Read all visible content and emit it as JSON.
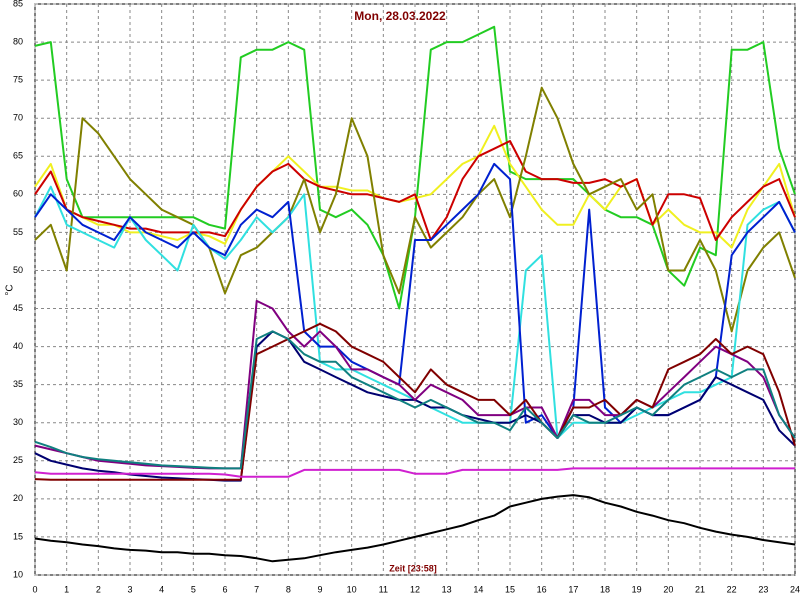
{
  "chart_data": {
    "type": "line",
    "title": "Mon, 28.03.2022",
    "xlabel": "Zeit [23:58]",
    "ylabel": "°C",
    "x": [
      0,
      0.5,
      1,
      1.5,
      2,
      2.5,
      3,
      3.5,
      4,
      4.5,
      5,
      5.5,
      6,
      6.5,
      7,
      7.5,
      8,
      8.5,
      9,
      9.5,
      10,
      10.5,
      11,
      11.5,
      12,
      12.5,
      13,
      13.5,
      14,
      14.5,
      15,
      15.5,
      16,
      16.5,
      17,
      17.5,
      18,
      18.5,
      19,
      19.5,
      20,
      20.5,
      21,
      21.5,
      22,
      22.5,
      23,
      23.5,
      24
    ],
    "xlim": [
      0,
      24
    ],
    "xticks": [
      0,
      1,
      2,
      3,
      4,
      5,
      6,
      7,
      8,
      9,
      10,
      11,
      12,
      13,
      14,
      15,
      16,
      17,
      18,
      19,
      20,
      21,
      22,
      23,
      24
    ],
    "ylim": [
      10,
      85
    ],
    "yticks": [
      10,
      15,
      20,
      25,
      30,
      35,
      40,
      45,
      50,
      55,
      60,
      65,
      70,
      75,
      80,
      85
    ],
    "grid": true,
    "series": [
      {
        "color": "#22cc22",
        "values": [
          79.5,
          80,
          62,
          57,
          57,
          57,
          57,
          57,
          57,
          57,
          57,
          56,
          55.5,
          78,
          79,
          79,
          80,
          79,
          58,
          57,
          58,
          56,
          52,
          45,
          57,
          79,
          80,
          80,
          81,
          82,
          63,
          62,
          62,
          62,
          62,
          60,
          58,
          57,
          57,
          56,
          50,
          48,
          53,
          52,
          79,
          79,
          80,
          66,
          60
        ]
      },
      {
        "color": "#f0f020",
        "values": [
          61,
          64,
          58,
          57,
          56,
          56,
          55,
          55,
          54.5,
          54,
          55,
          54.5,
          53.5,
          58,
          61,
          63,
          65,
          63,
          61,
          61,
          60.5,
          60.5,
          59.5,
          59,
          59.5,
          60,
          62,
          64,
          65,
          69,
          64,
          61,
          58,
          56,
          56,
          60,
          58,
          61,
          62,
          56,
          58,
          56,
          55,
          55,
          53,
          58,
          61,
          64,
          57
        ]
      },
      {
        "color": "#cc0000",
        "values": [
          60,
          63,
          58,
          57,
          56.5,
          56,
          55.5,
          55.5,
          55,
          55,
          55,
          55,
          54.5,
          58,
          61,
          63,
          64,
          62,
          61,
          60.5,
          60,
          60,
          59.5,
          59,
          60,
          54,
          57,
          62,
          65,
          66,
          67,
          63,
          62,
          62,
          61.5,
          61.5,
          62,
          61,
          62,
          56,
          60,
          60,
          59.5,
          54,
          57,
          59,
          61,
          62,
          57
        ]
      },
      {
        "color": "#808000",
        "values": [
          54,
          56,
          50,
          70,
          68,
          65,
          62,
          60,
          58,
          57,
          56,
          53,
          47,
          52,
          53,
          55,
          57,
          62,
          55,
          60,
          70,
          65,
          52,
          47,
          57,
          53,
          55,
          57,
          60,
          62,
          57,
          65,
          74,
          70,
          64,
          60,
          61,
          62,
          58,
          60,
          50,
          50,
          54,
          50,
          42,
          50,
          53,
          55,
          49
        ]
      },
      {
        "color": "#30e0e0",
        "values": [
          57,
          61,
          56,
          55,
          54,
          53,
          57,
          54,
          52,
          50,
          56,
          53,
          51.5,
          54,
          57,
          55,
          57,
          60,
          38,
          37,
          37,
          36,
          35,
          34,
          33,
          32,
          31,
          30,
          30,
          30,
          30,
          50,
          52,
          28,
          30,
          30,
          30,
          30,
          31,
          32,
          33,
          34,
          34,
          35,
          36,
          56,
          58,
          59,
          55
        ]
      },
      {
        "color": "#0020d0",
        "values": [
          57,
          60,
          58,
          56,
          55,
          54,
          57,
          55,
          54,
          53,
          55,
          53,
          52,
          56,
          58,
          57,
          59,
          42,
          40,
          40,
          38,
          37,
          36,
          35,
          54,
          54,
          56,
          58,
          60,
          64,
          62,
          30,
          31,
          28,
          32,
          58,
          32,
          30,
          32,
          31,
          31,
          32,
          33,
          36,
          52,
          55,
          57,
          59,
          55
        ]
      },
      {
        "color": "#000070",
        "values": [
          26,
          25,
          24.5,
          24,
          23.7,
          23.5,
          23.2,
          23,
          22.8,
          22.7,
          22.6,
          22.5,
          22.4,
          22.4,
          40,
          42,
          41,
          38,
          37,
          36,
          35,
          34,
          33.5,
          33,
          33,
          32,
          32,
          31,
          30.5,
          30,
          30,
          31,
          30,
          28,
          31,
          31,
          30,
          30,
          32,
          31,
          31,
          32,
          33,
          36,
          35,
          34,
          33,
          29,
          27
        ]
      },
      {
        "color": "#800080",
        "values": [
          27,
          26.5,
          26,
          25.5,
          25,
          24.8,
          24.6,
          24.4,
          24.3,
          24.2,
          24.1,
          24,
          24,
          24,
          46,
          45,
          42,
          40,
          42,
          40,
          37,
          37,
          36,
          35,
          33,
          35,
          34,
          33,
          31,
          31,
          31,
          32,
          32,
          28,
          33,
          33,
          31,
          31,
          33,
          32,
          34,
          36,
          38,
          40,
          39,
          38,
          36,
          31,
          28
        ]
      },
      {
        "color": "#800000",
        "values": [
          22.6,
          22.5,
          22.5,
          22.5,
          22.5,
          22.5,
          22.5,
          22.5,
          22.5,
          22.5,
          22.5,
          22.5,
          22.5,
          22.5,
          39,
          40,
          41,
          42,
          43,
          42,
          40,
          39,
          38,
          36,
          34,
          37,
          35,
          34,
          33,
          33,
          31,
          33,
          30,
          28,
          32,
          32,
          33,
          31,
          33,
          32,
          37,
          38,
          39,
          41,
          39,
          40,
          39,
          34,
          27
        ]
      },
      {
        "color": "#108080",
        "values": [
          27.5,
          26.8,
          26,
          25.5,
          25.2,
          25,
          24.8,
          24.6,
          24.4,
          24.3,
          24.2,
          24.1,
          24,
          24,
          41,
          42,
          41,
          39,
          38,
          38,
          36,
          35,
          34,
          33,
          32,
          33,
          32,
          31,
          30,
          30,
          29,
          32,
          30,
          28,
          31,
          30,
          30,
          31,
          32,
          31,
          33,
          35,
          36,
          37,
          36,
          37,
          37,
          31,
          28
        ]
      },
      {
        "color": "#d020d0",
        "values": [
          23.5,
          23.3,
          23.3,
          23.3,
          23.3,
          23.3,
          23.3,
          23.3,
          23.3,
          23.3,
          23.3,
          23.3,
          23.2,
          22.9,
          22.9,
          22.9,
          22.9,
          23.8,
          23.8,
          23.8,
          23.8,
          23.8,
          23.8,
          23.8,
          23.3,
          23.3,
          23.3,
          23.8,
          23.8,
          23.8,
          23.8,
          23.8,
          23.8,
          23.8,
          24,
          24,
          24,
          24,
          24,
          24,
          24,
          24,
          24,
          24,
          24,
          24,
          24,
          24,
          24
        ]
      },
      {
        "color": "#000000",
        "values": [
          14.8,
          14.5,
          14.3,
          14,
          13.8,
          13.5,
          13.3,
          13.2,
          13,
          13,
          12.8,
          12.8,
          12.6,
          12.5,
          12.2,
          11.8,
          12,
          12.2,
          12.6,
          13,
          13.3,
          13.6,
          14,
          14.5,
          15,
          15.5,
          16,
          16.5,
          17.2,
          17.8,
          19,
          19.5,
          20,
          20.3,
          20.5,
          20.2,
          19.5,
          19,
          18.3,
          17.8,
          17.2,
          16.8,
          16.2,
          15.7,
          15.3,
          15,
          14.6,
          14.3,
          14
        ]
      }
    ]
  }
}
